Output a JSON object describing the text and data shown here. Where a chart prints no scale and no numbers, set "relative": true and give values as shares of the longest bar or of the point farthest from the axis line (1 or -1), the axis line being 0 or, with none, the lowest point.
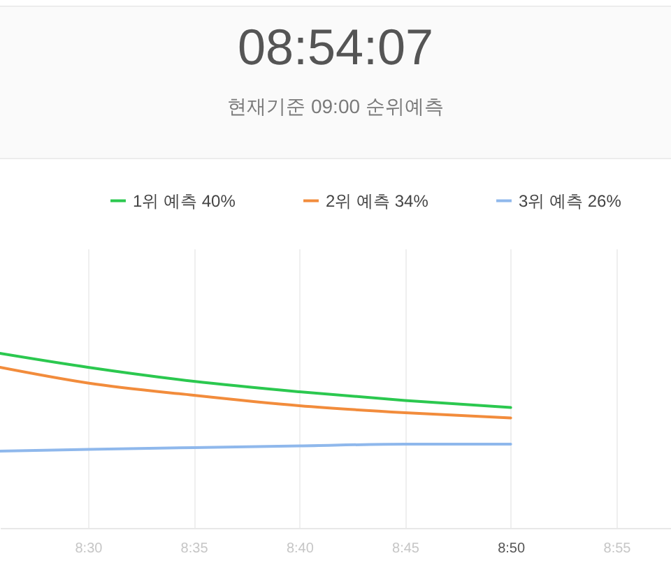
{
  "chart_data": {
    "type": "line",
    "title": "08:54:07",
    "subtitle": "현재기준 09:00 순위예측",
    "x": [
      8.4306,
      8.5,
      8.5833,
      8.6667,
      8.75,
      8.8333
    ],
    "series": [
      {
        "name": "1위 예측 40%",
        "color": "#2bc84f",
        "values": [
          1,
          0.92,
          0.84,
          0.78,
          0.73,
          0.69
        ]
      },
      {
        "name": "2위 예측 34%",
        "color": "#f28c3c",
        "values": [
          0.92,
          0.83,
          0.76,
          0.7,
          0.66,
          0.63
        ]
      },
      {
        "name": "3위 예측 26%",
        "color": "#8fb8ec",
        "values": [
          0.44,
          0.45,
          0.46,
          0.47,
          0.48,
          0.48
        ]
      }
    ],
    "relative": true,
    "xlim": [
      8.4306,
      8.9597
    ],
    "xticks": [
      {
        "value": 8.5,
        "label": "8:30"
      },
      {
        "value": 8.5833,
        "label": "8:35"
      },
      {
        "value": 8.6667,
        "label": "8:40"
      },
      {
        "value": 8.75,
        "label": "8:45"
      },
      {
        "value": 8.8333,
        "label": "8:50"
      },
      {
        "value": 8.9167,
        "label": "8:55"
      }
    ],
    "grid": "x",
    "legend": "top"
  }
}
